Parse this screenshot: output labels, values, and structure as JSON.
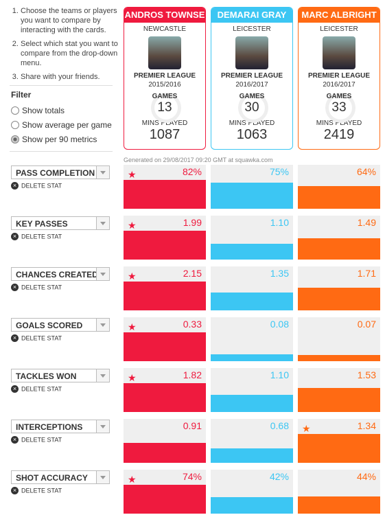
{
  "instructions": [
    "Choose the teams or players you want to compare by interacting with the cards.",
    "Select which stat you want to compare from the drop-down menu.",
    "Share with your friends."
  ],
  "filter": {
    "title": "Filter",
    "options": [
      "Show totals",
      "Show average per game",
      "Show per 90 metrics"
    ],
    "selected": 2
  },
  "players": [
    {
      "name": "ANDROS TOWNSE",
      "club": "NEWCASTLE",
      "league": "PREMIER LEAGUE",
      "season": "2015/2016",
      "games_label": "GAMES",
      "games": "13",
      "mins_label": "MINS PLAYED",
      "mins": "1087",
      "color": "#ef1a3e"
    },
    {
      "name": "DEMARAI GRAY",
      "club": "LEICESTER",
      "league": "PREMIER LEAGUE",
      "season": "2016/2017",
      "games_label": "GAMES",
      "games": "30",
      "mins_label": "MINS PLAYED",
      "mins": "1063",
      "color": "#3cc6f3"
    },
    {
      "name": "MARC ALBRIGHT",
      "club": "LEICESTER",
      "league": "PREMIER LEAGUE",
      "season": "2016/2017",
      "games_label": "GAMES",
      "games": "33",
      "mins_label": "MINS PLAYED",
      "mins": "2419",
      "color": "#ff6a13"
    }
  ],
  "generated": "Generated on 29/08/2017 09:20 GMT at squawka.com",
  "delete_label": "DELETE STAT",
  "stats": [
    {
      "name": "PASS COMPLETION",
      "values": [
        82,
        75,
        64
      ],
      "value_labels": [
        "82%",
        "75%",
        "64%"
      ]
    },
    {
      "name": "KEY PASSES",
      "values": [
        1.99,
        1.1,
        1.49
      ],
      "value_labels": [
        "1.99",
        "1.10",
        "1.49"
      ]
    },
    {
      "name": "CHANCES CREATED",
      "values": [
        2.15,
        1.35,
        1.71
      ],
      "value_labels": [
        "2.15",
        "1.35",
        "1.71"
      ]
    },
    {
      "name": "GOALS SCORED",
      "values": [
        0.33,
        0.08,
        0.07
      ],
      "value_labels": [
        "0.33",
        "0.08",
        "0.07"
      ]
    },
    {
      "name": "TACKLES WON",
      "values": [
        1.82,
        1.1,
        1.53
      ],
      "value_labels": [
        "1.82",
        "1.10",
        "1.53"
      ]
    },
    {
      "name": "INTERCEPTIONS",
      "values": [
        0.91,
        0.68,
        1.34
      ],
      "value_labels": [
        "0.91",
        "0.68",
        "1.34"
      ]
    },
    {
      "name": "SHOT ACCURACY",
      "values": [
        74,
        42,
        44
      ],
      "value_labels": [
        "74%",
        "42%",
        "44%"
      ]
    }
  ]
}
